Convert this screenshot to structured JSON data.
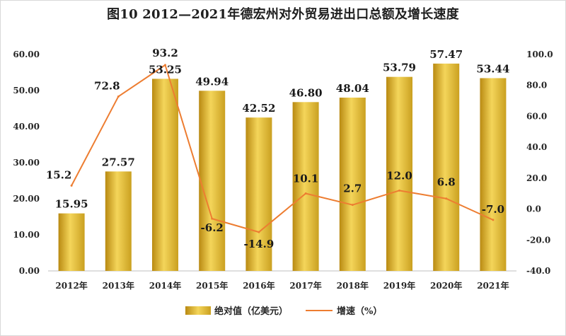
{
  "chart_data": {
    "type": "bar",
    "title": "图10   2012—2021年德宏州对外贸易进出口总额及增长速度",
    "categories": [
      "2012年",
      "2013年",
      "2014年",
      "2015年",
      "2016年",
      "2017年",
      "2018年",
      "2019年",
      "2020年",
      "2021年"
    ],
    "series": [
      {
        "name": "绝对值（亿美元）",
        "type": "bar",
        "axis": "left",
        "values": [
          15.95,
          27.57,
          53.25,
          49.94,
          42.52,
          46.8,
          48.04,
          53.79,
          57.47,
          53.44
        ],
        "labels": [
          "15.95",
          "27.57",
          "53.25",
          "49.94",
          "42.52",
          "46.80",
          "48.04",
          "53.79",
          "57.47",
          "53.44"
        ]
      },
      {
        "name": "增速（%）",
        "type": "line",
        "axis": "right",
        "values": [
          15.2,
          72.8,
          93.2,
          -6.2,
          -14.9,
          10.1,
          2.7,
          12.0,
          6.8,
          -7.0
        ],
        "labels": [
          "15.2",
          "72.8",
          "93.2",
          "-6.2",
          "-14.9",
          "10.1",
          "2.7",
          "12.0",
          "6.8",
          "-7.0"
        ]
      }
    ],
    "y_left": {
      "min": 0,
      "max": 60,
      "step": 10,
      "ticks": [
        "0.00",
        "10.00",
        "20.00",
        "30.00",
        "40.00",
        "50.00",
        "60.00"
      ]
    },
    "y_right": {
      "min": -40,
      "max": 100,
      "step": 20,
      "ticks": [
        "-40.0",
        "-20.0",
        "0.0",
        "20.0",
        "40.0",
        "60.0",
        "80.0",
        "100.0"
      ]
    },
    "grid": false,
    "legend_position": "bottom-center",
    "colors": {
      "bar_light": "#f7e27a",
      "bar_mid": "#e2b52a",
      "bar_dark": "#b7860f",
      "line": "#ed7d31",
      "axis": "#bfbfbf"
    }
  }
}
